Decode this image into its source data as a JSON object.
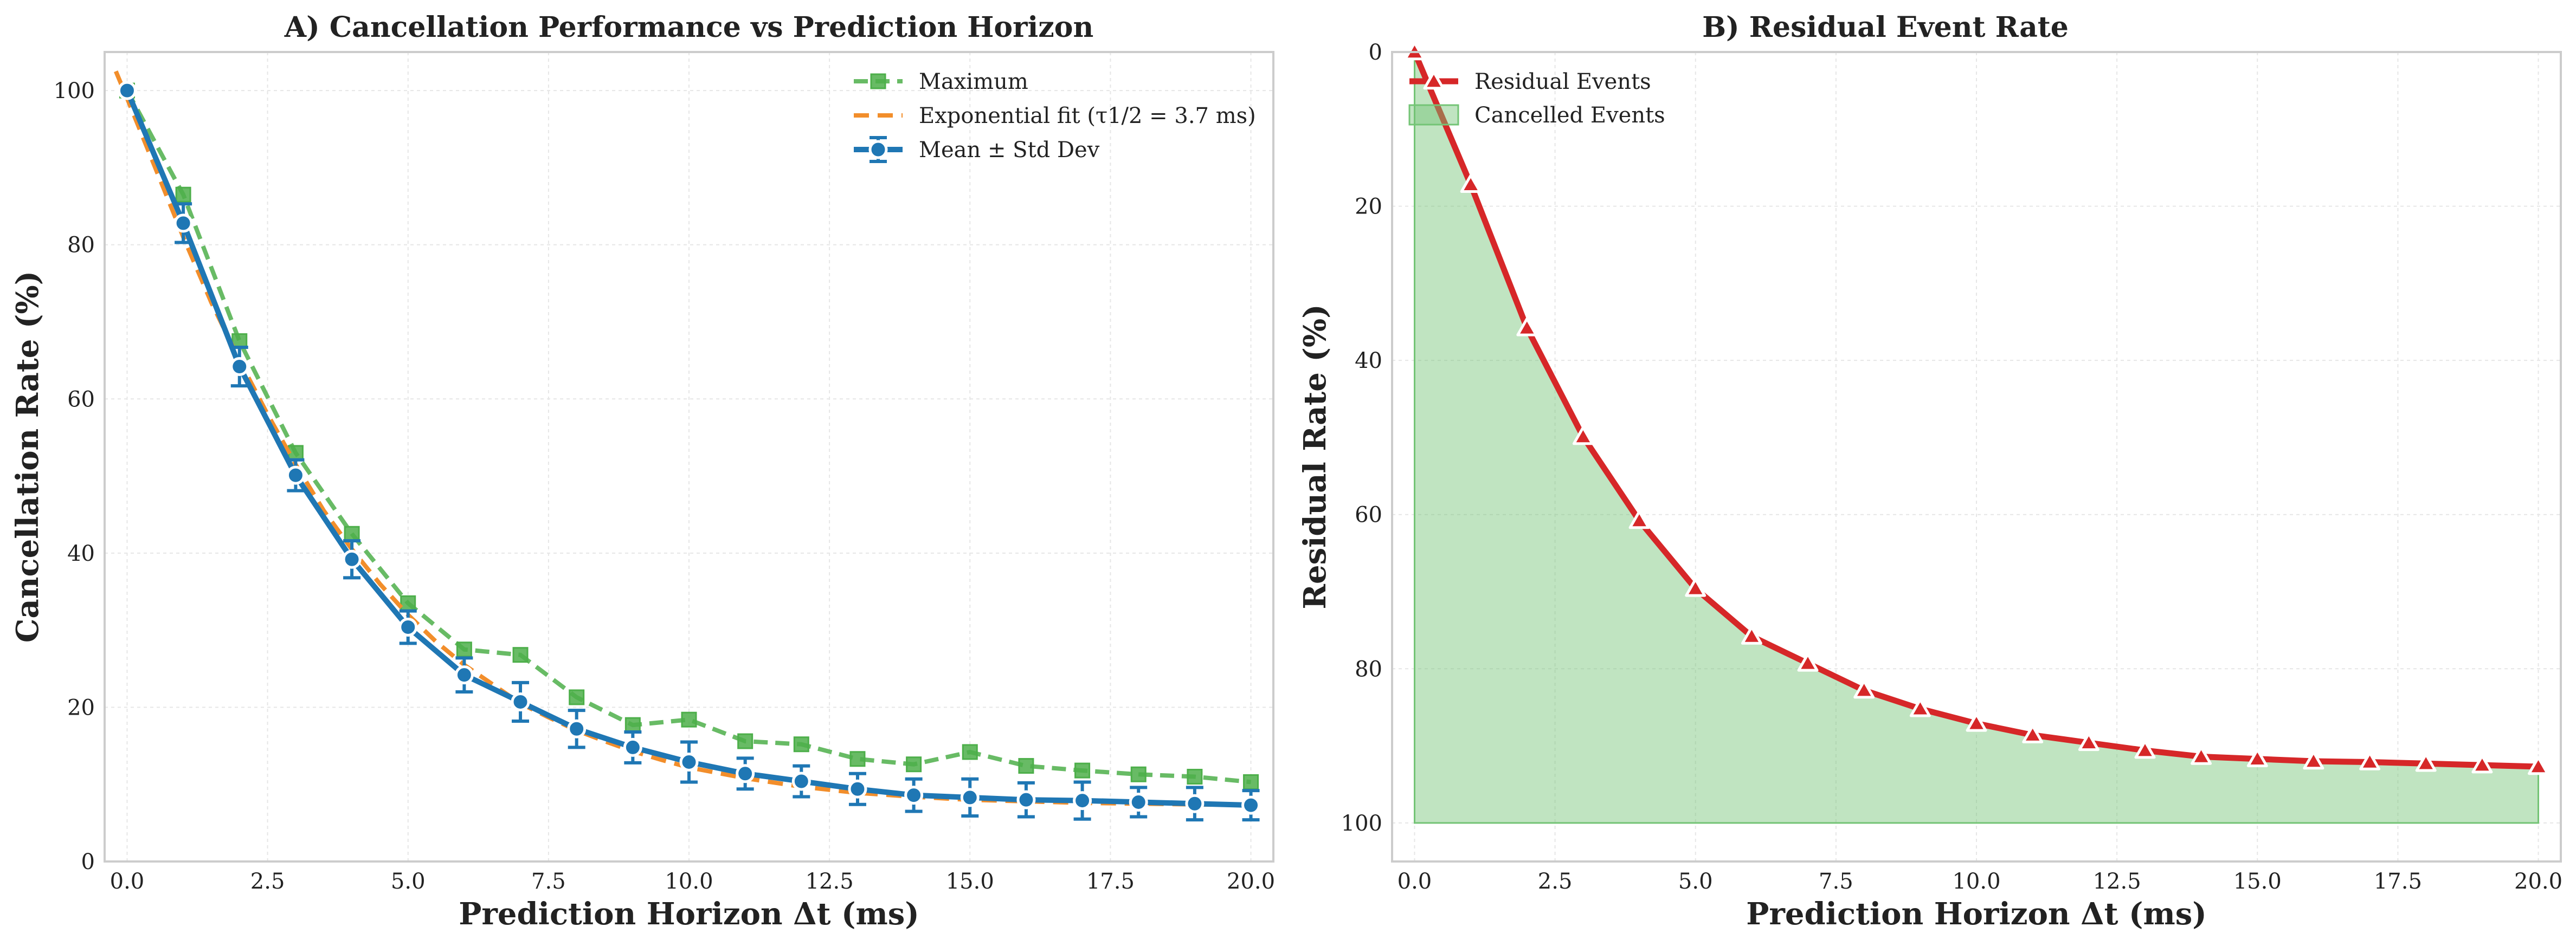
{
  "chart_data": [
    {
      "type": "line",
      "title": "A) Cancellation Performance vs Prediction Horizon",
      "xlabel": "Prediction Horizon Δt (ms)",
      "ylabel": "Cancellation Rate (%)",
      "xlim": [
        -0.4,
        20.4
      ],
      "ylim": [
        0,
        105
      ],
      "xticks": [
        "0.0",
        "2.5",
        "5.0",
        "7.5",
        "10.0",
        "12.5",
        "15.0",
        "17.5",
        "20.0"
      ],
      "yticks": [
        "0",
        "20",
        "40",
        "60",
        "80",
        "100"
      ],
      "grid": true,
      "legend_position": "top-right",
      "x": [
        0,
        1,
        2,
        3,
        4,
        5,
        6,
        7,
        8,
        9,
        10,
        11,
        12,
        13,
        14,
        15,
        16,
        17,
        18,
        19,
        20
      ],
      "series": [
        {
          "name": "Maximum",
          "style": "dashed-square",
          "color": "#4daf4a",
          "values": [
            100,
            86.5,
            67.5,
            53.0,
            42.5,
            33.5,
            27.5,
            26.8,
            21.3,
            17.7,
            18.4,
            15.6,
            15.2,
            13.3,
            12.6,
            14.2,
            12.4,
            11.8,
            11.3,
            11.0,
            10.3
          ]
        },
        {
          "name": "Exponential fit (τ1/2 = 3.7 ms)",
          "style": "dashed",
          "color": "#f28e2b",
          "x": [
            -0.2,
            0,
            0.5,
            1,
            1.5,
            2,
            2.5,
            3,
            3.5,
            4,
            4.5,
            5,
            5.5,
            6,
            6.5,
            7,
            7.5,
            8,
            8.5,
            9,
            9.5,
            10,
            11,
            12,
            13,
            14,
            15,
            16,
            17,
            18,
            19,
            20
          ],
          "values": [
            102.5,
            99.0,
            90.0,
            81.0,
            72.5,
            65.0,
            58.0,
            51.5,
            45.5,
            40.5,
            36.0,
            32.0,
            28.5,
            25.5,
            23.0,
            20.5,
            18.7,
            17.0,
            15.6,
            14.3,
            13.2,
            12.2,
            10.8,
            9.7,
            8.9,
            8.4,
            8.0,
            7.8,
            7.6,
            7.5,
            7.4,
            7.3
          ]
        },
        {
          "name": "Mean ± Std Dev",
          "style": "solid-circle-errorbar",
          "color": "#1f77b4",
          "values": [
            100,
            82.8,
            64.2,
            50.1,
            39.2,
            30.4,
            24.2,
            20.7,
            17.2,
            14.8,
            12.9,
            11.4,
            10.4,
            9.4,
            8.6,
            8.3,
            8.0,
            7.9,
            7.7,
            7.5,
            7.3
          ],
          "std": [
            0,
            2.5,
            2.5,
            2.0,
            2.4,
            2.1,
            2.2,
            2.5,
            2.4,
            2.0,
            2.6,
            2.0,
            2.0,
            2.0,
            2.1,
            2.4,
            2.2,
            2.4,
            1.9,
            2.1,
            1.9
          ]
        }
      ]
    },
    {
      "type": "area",
      "title": "B) Residual Event Rate",
      "xlabel": "Prediction Horizon Δt (ms)",
      "ylabel": "Residual Rate (%)",
      "xlim": [
        -0.4,
        20.4
      ],
      "ylim": [
        105,
        0
      ],
      "y_inverted": true,
      "xticks": [
        "0.0",
        "2.5",
        "5.0",
        "7.5",
        "10.0",
        "12.5",
        "15.0",
        "17.5",
        "20.0"
      ],
      "yticks": [
        "0",
        "20",
        "40",
        "60",
        "80",
        "100"
      ],
      "grid": true,
      "legend_position": "top-left",
      "x": [
        0,
        1,
        2,
        3,
        4,
        5,
        6,
        7,
        8,
        9,
        10,
        11,
        12,
        13,
        14,
        15,
        16,
        17,
        18,
        19,
        20
      ],
      "series": [
        {
          "name": "Residual Events",
          "style": "solid-triangle",
          "color": "#d62728",
          "values": [
            0,
            17.2,
            35.8,
            49.9,
            60.8,
            69.6,
            75.8,
            79.3,
            82.8,
            85.2,
            87.1,
            88.6,
            89.6,
            90.6,
            91.4,
            91.7,
            92.0,
            92.1,
            92.3,
            92.5,
            92.7
          ]
        },
        {
          "name": "Cancelled Events",
          "style": "fill",
          "color": "#74c476",
          "between": [
            "Residual Events",
            100
          ]
        }
      ]
    }
  ]
}
